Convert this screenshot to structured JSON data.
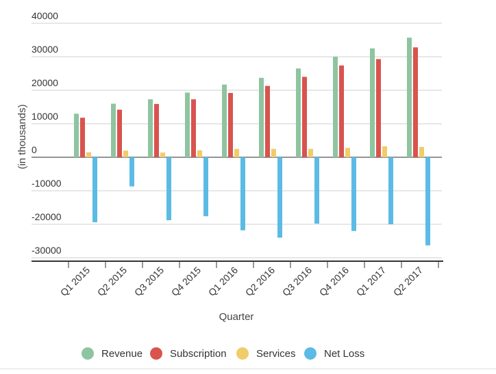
{
  "chart_data": {
    "type": "bar",
    "title": "",
    "xlabel": "Quarter",
    "ylabel": "(in thousands)",
    "ylim": [
      -30000,
      40000
    ],
    "yticks": [
      40000,
      30000,
      20000,
      10000,
      0,
      -10000,
      -20000,
      -30000
    ],
    "grid": true,
    "legend_position": "bottom",
    "categories": [
      "Q1 2015",
      "Q2 2015",
      "Q3 2015",
      "Q4 2015",
      "Q1 2016",
      "Q2 2016",
      "Q3 2016",
      "Q4 2016",
      "Q1 2017",
      "Q2 2017"
    ],
    "series": [
      {
        "name": "Revenue",
        "color": "#8fc4a0",
        "values": [
          13000,
          16000,
          17300,
          19300,
          21700,
          23700,
          26500,
          30000,
          32500,
          35700
        ]
      },
      {
        "name": "Subscription",
        "color": "#d9534f",
        "values": [
          11800,
          14200,
          15900,
          17300,
          19200,
          21300,
          24000,
          27400,
          29300,
          32800
        ]
      },
      {
        "name": "Services",
        "color": "#f0cc6a",
        "values": [
          1500,
          2000,
          1400,
          2100,
          2500,
          2500,
          2500,
          2800,
          3300,
          3100
        ]
      },
      {
        "name": "Net Loss",
        "color": "#5bbbe4",
        "values": [
          -19400,
          -8700,
          -18800,
          -17600,
          -21800,
          -24000,
          -19800,
          -22000,
          -20000,
          -26300
        ]
      }
    ]
  }
}
